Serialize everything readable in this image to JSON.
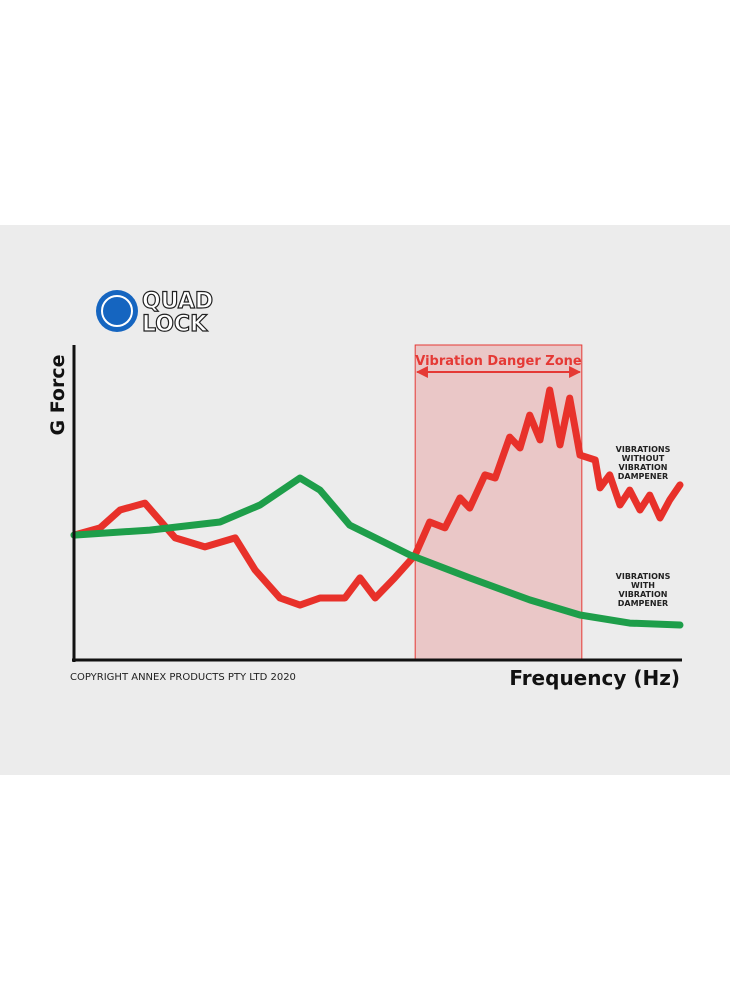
{
  "chart_data": {
    "type": "line",
    "logo": [
      "QUAD",
      "LOCK"
    ],
    "ylabel": "G Force",
    "xlabel": "Frequency (Hz)",
    "copyright": "COPYRIGHT ANNEX PRODUCTS PTY LTD 2020",
    "xlim": [
      0,
      100
    ],
    "ylim": [
      0,
      100
    ],
    "danger_zone": {
      "label": "Vibration Danger Zone",
      "x": [
        56.3,
        83.8
      ],
      "color": "#e53935"
    },
    "series": [
      {
        "name": "VIBRATIONS WITHOUT VIBRATION DAMPENER",
        "color": "#e8312a",
        "x": [
          0,
          4.3,
          7.6,
          11.7,
          16.7,
          21.6,
          26.6,
          29.9,
          34,
          37.3,
          40.6,
          44.7,
          47.2,
          49.7,
          52.9,
          56.3,
          58.7,
          61.2,
          63.7,
          65.3,
          67.8,
          69.5,
          71.9,
          73.6,
          75.2,
          76.9,
          78.5,
          80.2,
          81.8,
          83.5,
          86,
          86.8,
          88.4,
          90.1,
          91.7,
          93.4,
          95,
          96.7,
          98.3,
          100
        ],
        "values": [
          40.3,
          42.6,
          48.4,
          50.6,
          39.4,
          36.5,
          39.4,
          29,
          20,
          17.7,
          20,
          20,
          26.5,
          20,
          26.5,
          33.9,
          44.5,
          42.6,
          52.3,
          49,
          59.7,
          58.7,
          71.9,
          68.4,
          79,
          71,
          87.1,
          69.4,
          84.5,
          66.1,
          64.5,
          55.5,
          59.7,
          50,
          54.8,
          48.4,
          53.2,
          45.8,
          51.6,
          56.5
        ]
      },
      {
        "name": "VIBRATIONS WITH VIBRATION DAMPENER",
        "color": "#1e9e4a",
        "x": [
          0,
          12.5,
          24.1,
          30.7,
          37.3,
          40.6,
          45.5,
          55.4,
          65.3,
          75.2,
          83.5,
          91.7,
          100
        ],
        "values": [
          40.3,
          41.9,
          44.5,
          50,
          58.7,
          54.8,
          43.5,
          33.9,
          26.5,
          19.4,
          14.5,
          11.9,
          11.3
        ]
      }
    ]
  }
}
